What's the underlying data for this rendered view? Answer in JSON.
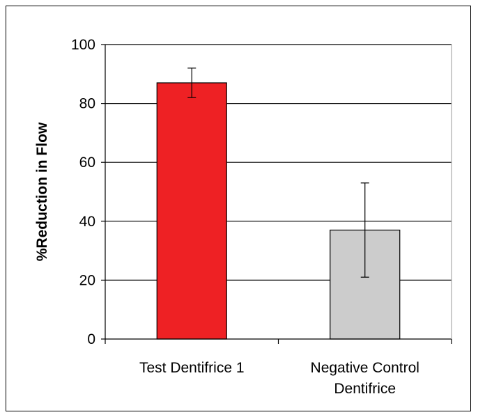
{
  "chart_data": {
    "type": "bar",
    "title": "",
    "xlabel": "",
    "ylabel": "%Reduction in Flow",
    "ylim": [
      0,
      100
    ],
    "yticks": [
      0,
      20,
      40,
      60,
      80,
      100
    ],
    "grid": true,
    "categories": [
      [
        "Test Dentifrice 1"
      ],
      [
        "Negative Control",
        "Dentifrice"
      ]
    ],
    "values": [
      87,
      37
    ],
    "error_low": [
      82,
      21
    ],
    "error_high": [
      92,
      53
    ],
    "colors": [
      "#ee2124",
      "#cccccc"
    ]
  }
}
